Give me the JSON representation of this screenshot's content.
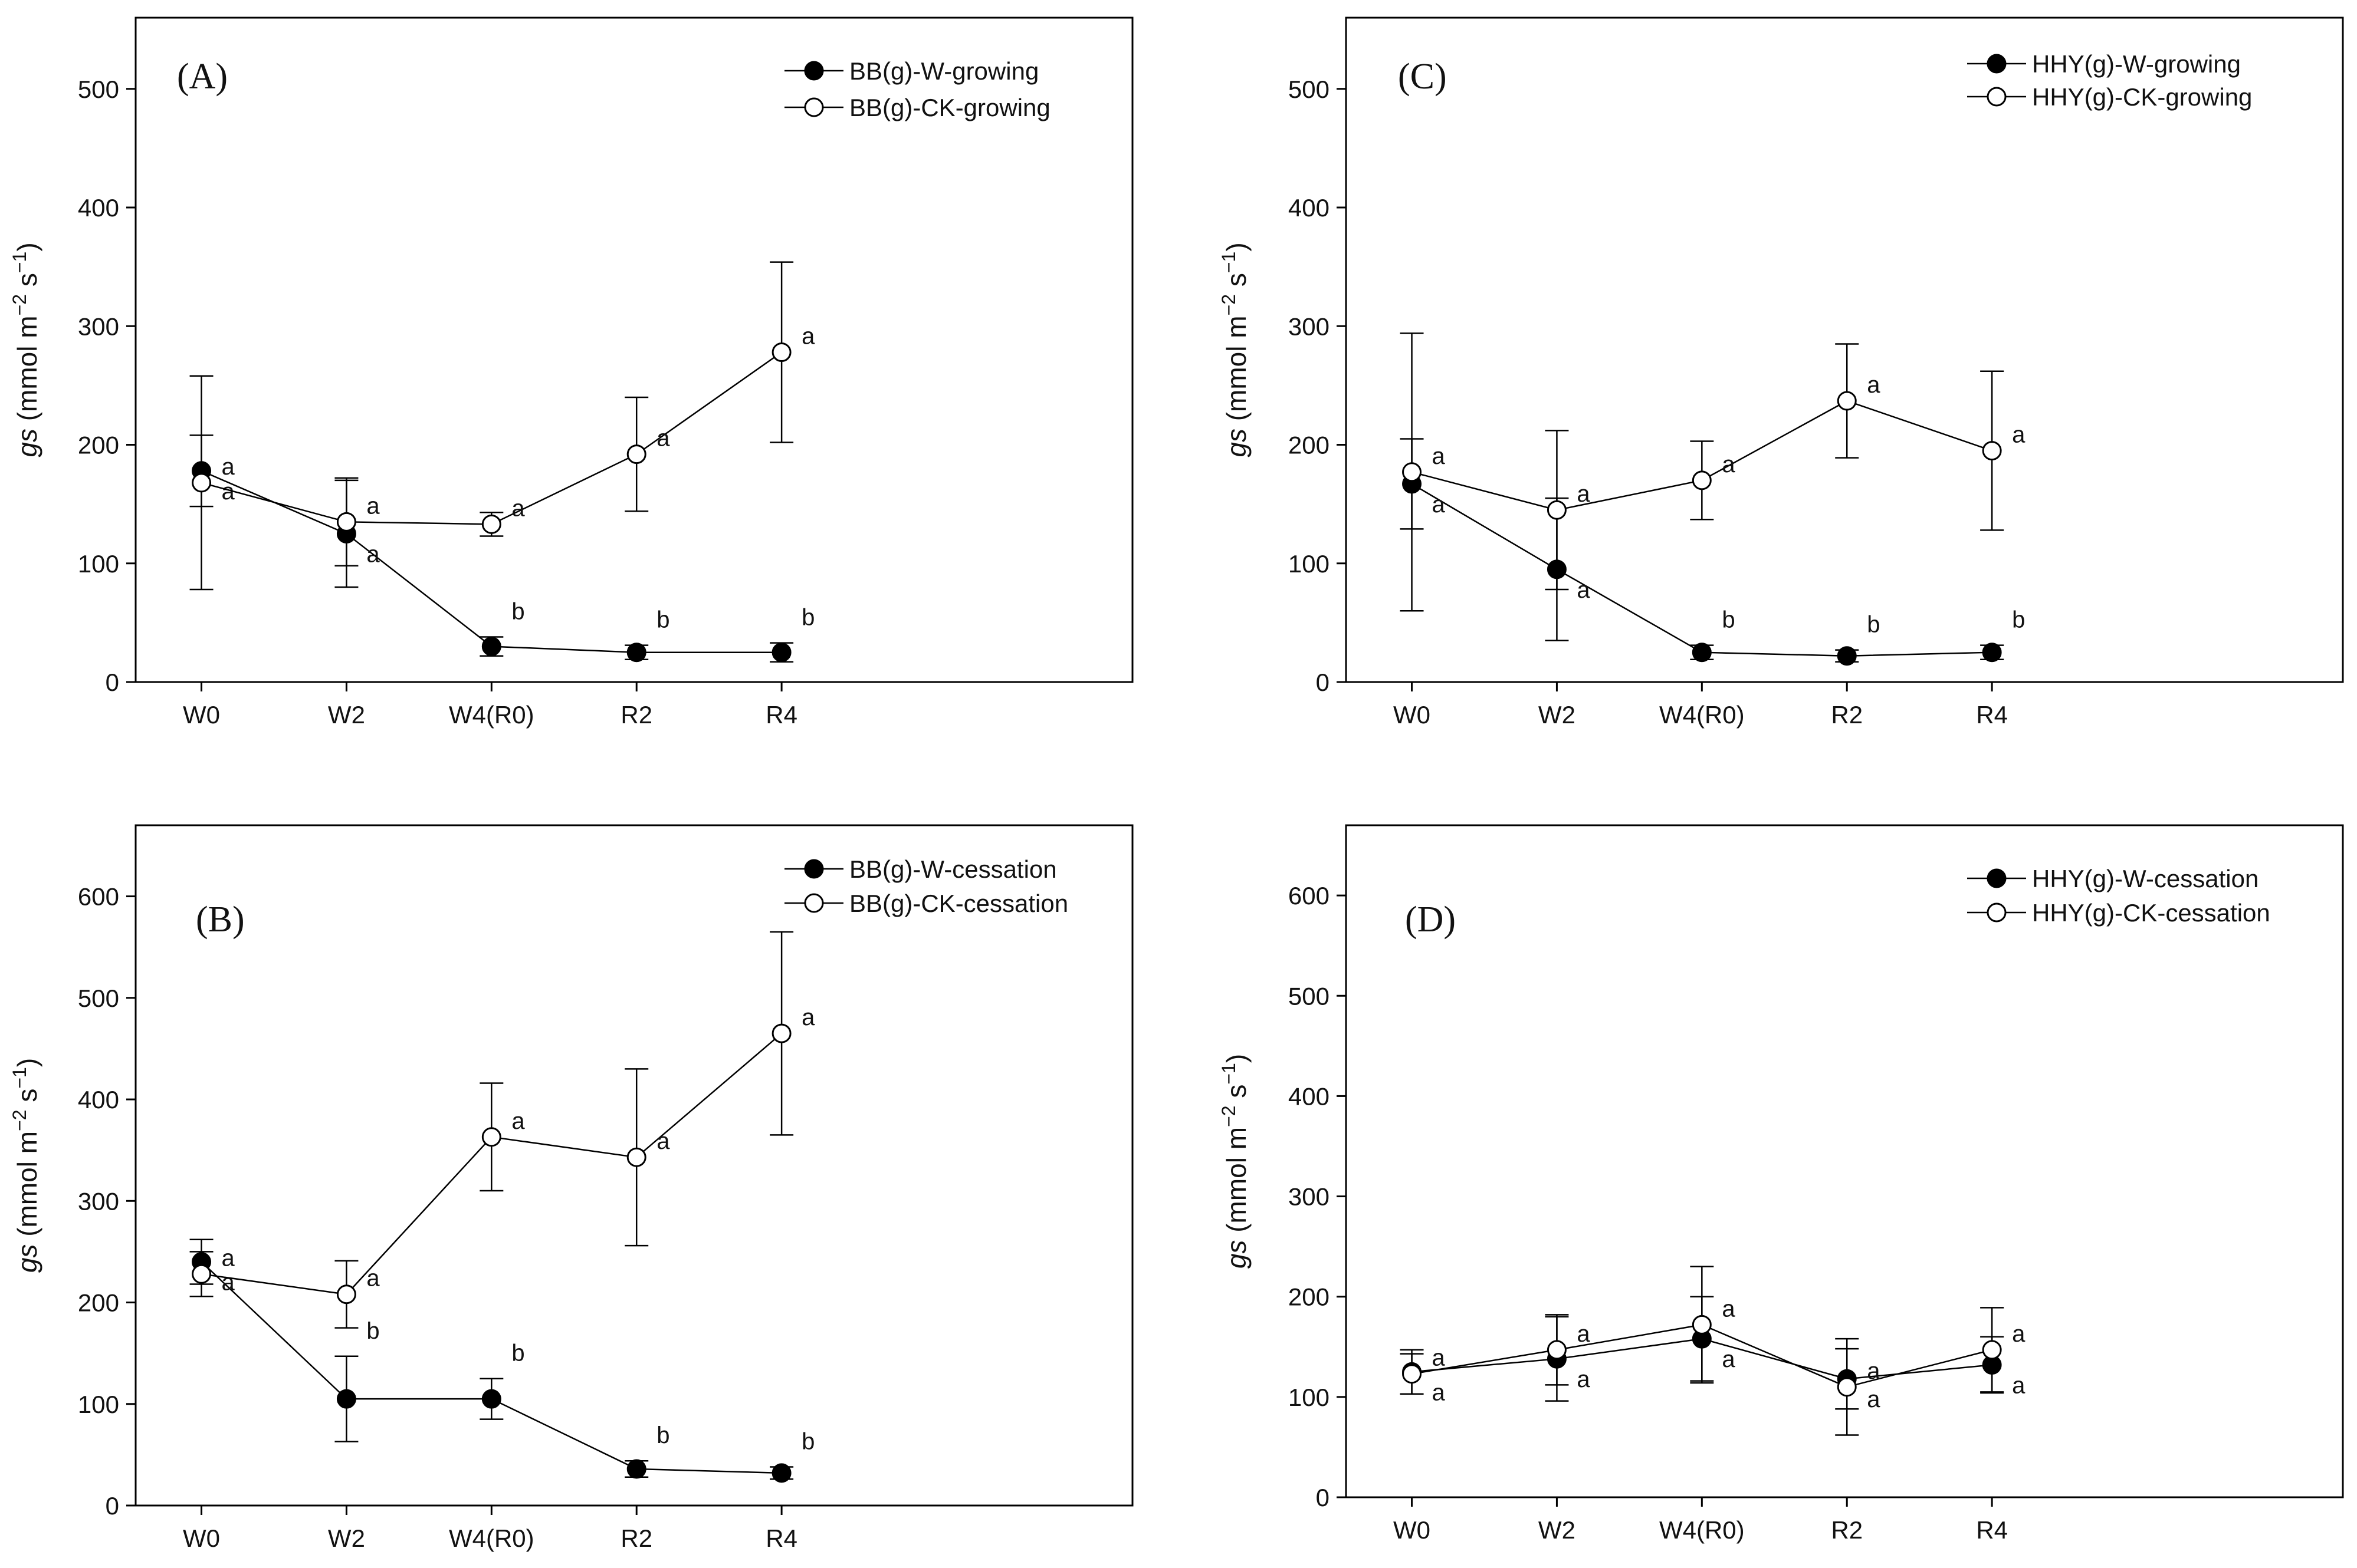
{
  "figure": {
    "y_axis_label": {
      "italic": "gs",
      "unit_pre": " (mmol m",
      "exp1": "−2",
      "unit_mid": " s",
      "exp2": "−1",
      "unit_post": ")"
    }
  },
  "chart_data": [
    {
      "id": "A",
      "type": "line",
      "panel_label": "(A)",
      "categories": [
        "W0",
        "W2",
        "W4(R0)",
        "R2",
        "R4"
      ],
      "ylim": [
        0,
        560
      ],
      "yticks": [
        0,
        100,
        200,
        300,
        400,
        500
      ],
      "series": [
        {
          "name": "BB(g)-W-growing",
          "marker": "filled",
          "values": [
            178,
            125,
            30,
            25,
            25
          ],
          "errors": [
            30,
            45,
            8,
            6,
            8
          ],
          "labels": [
            "a",
            "a",
            "b",
            "b",
            "b"
          ]
        },
        {
          "name": "BB(g)-CK-growing",
          "marker": "open",
          "values": [
            168,
            135,
            133,
            192,
            278
          ],
          "errors": [
            90,
            37,
            10,
            48,
            76
          ],
          "labels": [
            "a",
            "a",
            "a",
            "a",
            "a"
          ]
        }
      ]
    },
    {
      "id": "B",
      "type": "line",
      "panel_label": "(B)",
      "categories": [
        "W0",
        "W2",
        "W4(R0)",
        "R2",
        "R4"
      ],
      "ylim": [
        0,
        670
      ],
      "yticks": [
        0,
        100,
        200,
        300,
        400,
        500,
        600
      ],
      "series": [
        {
          "name": "BB(g)-W-cessation",
          "marker": "filled",
          "values": [
            240,
            105,
            105,
            36,
            32
          ],
          "errors": [
            22,
            42,
            20,
            8,
            6
          ],
          "labels": [
            "a",
            "b",
            "b",
            "b",
            "b"
          ]
        },
        {
          "name": "BB(g)-CK-cessation",
          "marker": "open",
          "values": [
            228,
            208,
            363,
            343,
            465
          ],
          "errors": [
            22,
            33,
            53,
            87,
            100
          ],
          "labels": [
            "a",
            "a",
            "a",
            "a",
            "a"
          ]
        }
      ]
    },
    {
      "id": "C",
      "type": "line",
      "panel_label": "(C)",
      "categories": [
        "W0",
        "W2",
        "W4(R0)",
        "R2",
        "R4"
      ],
      "ylim": [
        0,
        560
      ],
      "yticks": [
        0,
        100,
        200,
        300,
        400,
        500
      ],
      "series": [
        {
          "name": "HHY(g)-W-growing",
          "marker": "filled",
          "values": [
            167,
            95,
            25,
            22,
            25
          ],
          "errors": [
            38,
            60,
            6,
            5,
            6
          ],
          "labels": [
            "a",
            "a",
            "b",
            "b",
            "b"
          ]
        },
        {
          "name": "HHY(g)-CK-growing",
          "marker": "open",
          "values": [
            177,
            145,
            170,
            237,
            195
          ],
          "errors": [
            117,
            67,
            33,
            48,
            67
          ],
          "labels": [
            "a",
            "a",
            "a",
            "a",
            "a"
          ]
        }
      ]
    },
    {
      "id": "D",
      "type": "line",
      "panel_label": "(D)",
      "categories": [
        "W0",
        "W2",
        "W4(R0)",
        "R2",
        "R4"
      ],
      "ylim": [
        0,
        670
      ],
      "yticks": [
        0,
        100,
        200,
        300,
        400,
        500,
        600
      ],
      "series": [
        {
          "name": "HHY(g)-W-cessation",
          "marker": "filled",
          "values": [
            125,
            138,
            158,
            118,
            132
          ],
          "errors": [
            22,
            42,
            42,
            30,
            28
          ],
          "labels": [
            "a",
            "a",
            "a",
            "a",
            "a"
          ]
        },
        {
          "name": "HHY(g)-CK-cessation",
          "marker": "open",
          "values": [
            123,
            147,
            172,
            110,
            147
          ],
          "errors": [
            20,
            35,
            58,
            48,
            42
          ],
          "labels": [
            "a",
            "a",
            "a",
            "a",
            "a"
          ]
        }
      ]
    }
  ]
}
